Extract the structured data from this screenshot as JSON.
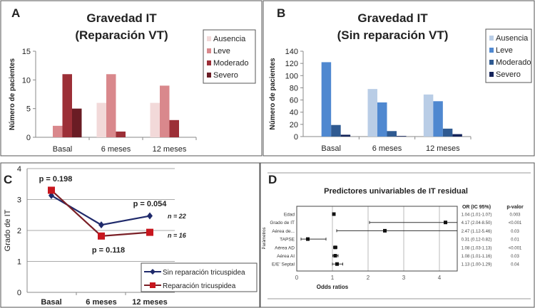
{
  "chart_data": [
    {
      "panel": "A",
      "type": "bar",
      "title": [
        "Gravedad IT",
        "(Reparación VT)"
      ],
      "ylabel": "Número de pacientes",
      "ylim": [
        0,
        15
      ],
      "yticks": [
        0,
        5,
        10,
        15
      ],
      "categories": [
        "Basal",
        "6 meses",
        "12 meses"
      ],
      "series": [
        {
          "name": "Ausencia",
          "color": "#f2d9d9",
          "values": [
            0,
            6,
            6
          ]
        },
        {
          "name": "Leve",
          "color": "#d9888c",
          "values": [
            2,
            11,
            9
          ]
        },
        {
          "name": "Moderado",
          "color": "#9c2f37",
          "values": [
            11,
            1,
            3
          ]
        },
        {
          "name": "Severo",
          "color": "#6a1c24",
          "values": [
            5,
            0,
            0
          ]
        }
      ],
      "legend": "right",
      "grid": false
    },
    {
      "panel": "B",
      "type": "bar",
      "title": [
        "Gravedad IT",
        "(Sin reparación VT)"
      ],
      "ylabel": "Número de pacientes",
      "ylim": [
        0,
        140
      ],
      "yticks": [
        0,
        20,
        40,
        60,
        80,
        100,
        120,
        140
      ],
      "categories": [
        "Basal",
        "6 meses",
        "12 meses"
      ],
      "series": [
        {
          "name": "Ausencia",
          "color": "#b9cde6",
          "values": [
            0,
            78,
            69
          ]
        },
        {
          "name": "Leve",
          "color": "#4f88d0",
          "values": [
            122,
            56,
            58
          ]
        },
        {
          "name": "Moderado",
          "color": "#2f5a91",
          "values": [
            19,
            9,
            13
          ]
        },
        {
          "name": "Severo",
          "color": "#14235a",
          "values": [
            3,
            1,
            4
          ]
        }
      ],
      "legend": "right",
      "grid": false
    },
    {
      "panel": "C",
      "type": "line",
      "ylabel": "Grado de IT",
      "ylim": [
        0,
        4
      ],
      "yticks": [
        0,
        1,
        2,
        3,
        4
      ],
      "categories": [
        "Basal",
        "6 meses",
        "12 meses"
      ],
      "series": [
        {
          "name": "Sin reparación tricuspidea",
          "color": "#1f2a6b",
          "marker": "diamond",
          "values": [
            3.13,
            2.18,
            2.47
          ]
        },
        {
          "name": "Reparación tricuspidea",
          "color": "#7a1f26",
          "marker": "square",
          "values": [
            3.3,
            1.82,
            1.94
          ]
        }
      ],
      "annotations": [
        "p = 0.198",
        "p = 0.054",
        "p = 0.118",
        "n = 22",
        "n = 16"
      ],
      "legend": "bottom-right",
      "grid": true
    },
    {
      "panel": "D",
      "type": "forest",
      "title": "Predictores univariables de IT residual",
      "xlabel": "Odds ratios",
      "ylabel": "Parámetros",
      "xlim": [
        0,
        4.5
      ],
      "xticks": [
        0,
        1,
        2,
        3,
        4
      ],
      "table_headers": [
        "OR (IC 95%)",
        "p-valor"
      ],
      "rows": [
        {
          "label": "Edad",
          "or": 1.04,
          "lo": 1.01,
          "hi": 1.07,
          "text": "1.04 (1.01-1.07)",
          "p": "0.003"
        },
        {
          "label": "Grado de IT",
          "or": 4.17,
          "lo": 2.04,
          "hi": 8.5,
          "text": "4.17 (2.04-8.50)",
          "p": "<0.001"
        },
        {
          "label": "Aérea de...",
          "or": 2.47,
          "lo": 1.12,
          "hi": 5.46,
          "text": "2.47 (1.12-5.46)",
          "p": "0.03"
        },
        {
          "label": "TAPSE",
          "or": 0.31,
          "lo": 0.12,
          "hi": 0.82,
          "text": "0.31 (0.12-0.82)",
          "p": "0.01"
        },
        {
          "label": "Aérea AD",
          "or": 1.08,
          "lo": 1.03,
          "hi": 1.13,
          "text": "1.08 (1.03-1.13)",
          "p": "<0.001"
        },
        {
          "label": "Aérea AI",
          "or": 1.08,
          "lo": 1.01,
          "hi": 1.16,
          "text": "1.08 (1.01-1.16)",
          "p": "0.03"
        },
        {
          "label": "E/E' Septal",
          "or": 1.13,
          "lo": 1.0,
          "hi": 1.29,
          "text": "1.13 (1.00-1.29)",
          "p": "0.04"
        }
      ],
      "grid": true
    }
  ]
}
